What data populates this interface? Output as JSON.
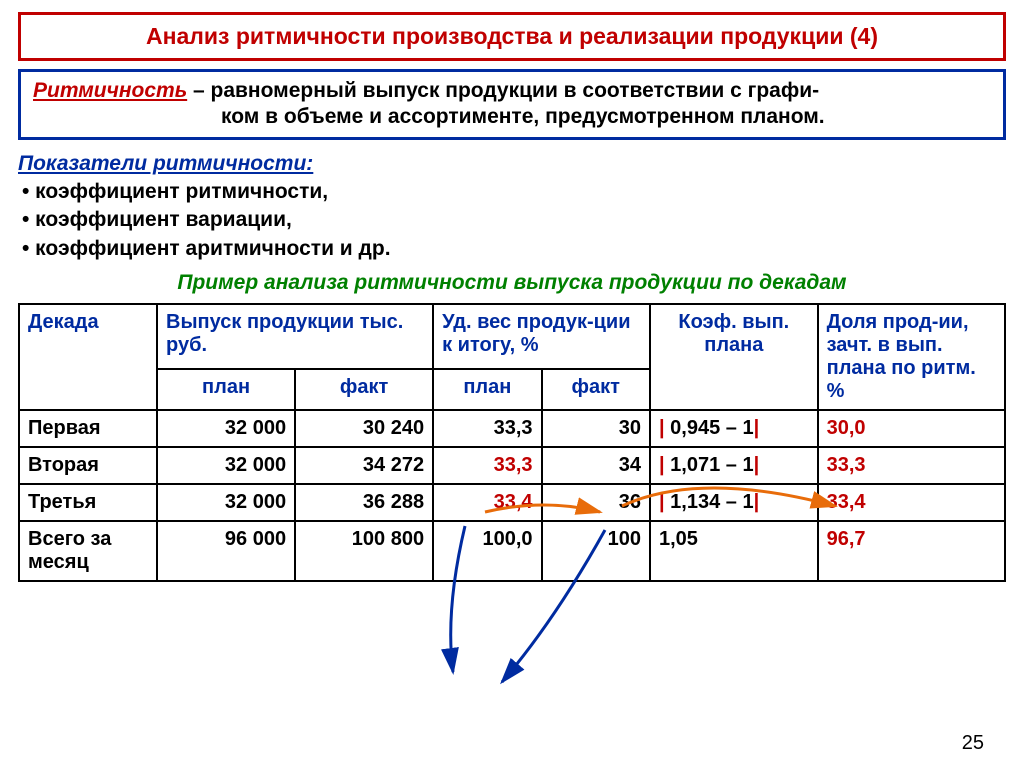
{
  "title": "Анализ ритмичности производства и реализации продукции  (4)",
  "definition": {
    "term": "Ритмичность",
    "line1": " – равномерный выпуск продукции в соответствии с графи-",
    "line2": "ком в объеме и ассортименте, предусмотренном планом."
  },
  "indicators": {
    "heading": "Показатели ритмичности:",
    "items": [
      "• коэффициент ритмичности,",
      "• коэффициент вариации,",
      "• коэффициент аритмичности и др."
    ]
  },
  "example_title": "Пример анализа ритмичности выпуска продукции по декадам",
  "table": {
    "headers": {
      "dekada": "Декада",
      "output": "Выпуск продукции тыс. руб.",
      "udves": "Уд. вес продук-ции к итогу, %",
      "coef": "Коэф. вып. плана",
      "share": "Доля прод-ии, зачт. в вып. плана по ритм. %",
      "plan": "план",
      "fact": "факт"
    },
    "rows": [
      {
        "label": "Первая",
        "plan_out": "32 000",
        "fact_out": "30 240",
        "plan_pct": "33,3",
        "fact_pct": "30",
        "coef": "| 0,945 – 1|",
        "share": "30,0",
        "pct_plan_red": false,
        "share_pink": false
      },
      {
        "label": "Вторая",
        "plan_out": "32 000",
        "fact_out": "34 272",
        "plan_pct": "33,3",
        "fact_pct": "34",
        "coef": "| 1,071 – 1|",
        "share": "33,3",
        "pct_plan_red": true,
        "share_pink": false
      },
      {
        "label": "Третья",
        "plan_out": "32 000",
        "fact_out": "36 288",
        "plan_pct": "33,4",
        "fact_pct": "36",
        "coef": "| 1,134 – 1|",
        "share": "33,4",
        "pct_plan_red": true,
        "share_pink": false
      },
      {
        "label": "Всего за месяц",
        "plan_out": "96 000",
        "fact_out": "100 800",
        "plan_pct": "100,0",
        "fact_pct": "100",
        "coef": "1,05",
        "share": "96,7",
        "pct_plan_red": false,
        "share_pink": true,
        "no_bars": true
      }
    ]
  },
  "page_number": "25",
  "colors": {
    "red": "#c00000",
    "blue": "#002ba0",
    "green": "#008000",
    "orange": "#e86c0a",
    "pink": "#ff00a0"
  },
  "col_widths": [
    "14%",
    "14%",
    "14%",
    "11%",
    "11%",
    "17%",
    "19%"
  ]
}
